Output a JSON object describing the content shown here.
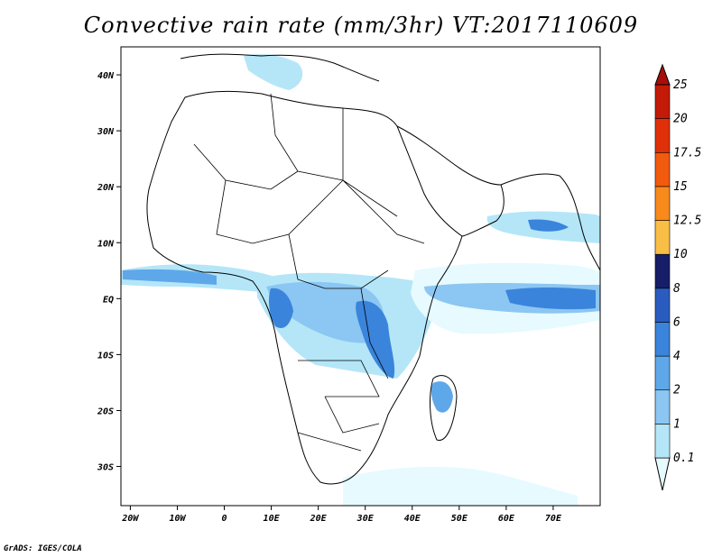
{
  "title": "Convective rain rate (mm/3hr) VT:2017110609",
  "footer": "GrADS: IGES/COLA",
  "map": {
    "lon_range": [
      -22,
      80
    ],
    "lat_range": [
      -37,
      45
    ],
    "lon_ticks": [
      "20W",
      "10W",
      "0",
      "10E",
      "20E",
      "30E",
      "40E",
      "50E",
      "60E",
      "70E"
    ],
    "lat_ticks": [
      "40N",
      "30N",
      "20N",
      "10N",
      "EQ",
      "10S",
      "20S",
      "30S"
    ]
  },
  "colorbar": {
    "levels": [
      "0.1",
      "1",
      "2",
      "4",
      "6",
      "8",
      "10",
      "12.5",
      "15",
      "17.5",
      "20",
      "25"
    ],
    "colors": [
      "#e6faff",
      "#b4e6f8",
      "#8cc6f2",
      "#5ea8ea",
      "#3a84dc",
      "#2a5cc0",
      "#161e68",
      "#f8be46",
      "#f88a1c",
      "#f25a0e",
      "#e0300a",
      "#c41a08",
      "#a80e0a"
    ]
  }
}
